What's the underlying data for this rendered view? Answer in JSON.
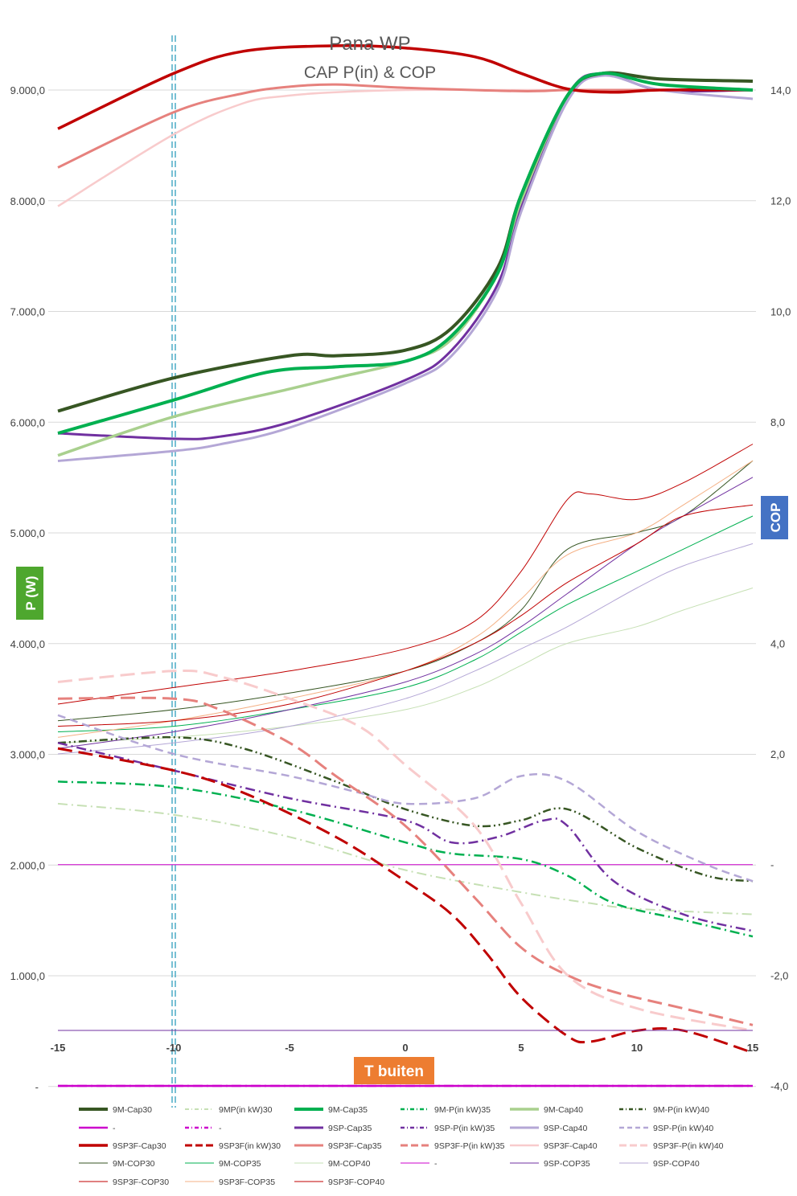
{
  "chart_data": {
    "type": "line",
    "title": "Pana WP",
    "subtitle": "CAP P(in) & COP",
    "xlabel": "T buiten",
    "ylabel": "P (W)",
    "y2label": "COP",
    "xlim": [
      -15,
      15
    ],
    "ylim": [
      0,
      10000
    ],
    "y2lim": [
      -4,
      15
    ],
    "x_ticks": [
      "-15",
      "-10",
      "-5",
      "0",
      "5",
      "10",
      "15"
    ],
    "y_ticks": [
      "9.000,0",
      "8.000,0",
      "7.000,0",
      "6.000,0",
      "5.000,0",
      "4.000,0",
      "3.000,0",
      "2.000,0",
      "1.000,0",
      "-"
    ],
    "y2_ticks": [
      "14,0",
      "12,0",
      "10,0",
      "8,0",
      "6,0",
      "4,0",
      "2,0",
      "-",
      "-2,0",
      "-4,0"
    ],
    "marker_line_x": -10,
    "colors": {
      "badge_green": "#4ea72e",
      "badge_blue": "#4472c4",
      "badge_orange": "#ed7d31",
      "marker_line": "#4bacc6"
    },
    "series": [
      {
        "name": "9M-Cap30",
        "axis": "left",
        "color": "#375623",
        "width": 4,
        "dash": "solid",
        "x": [
          -15,
          -10,
          -5,
          -3,
          0,
          2,
          4,
          5,
          7,
          8.5,
          11,
          15
        ],
        "values": [
          6100,
          6400,
          6600,
          6600,
          6650,
          6850,
          7400,
          8050,
          8950,
          9150,
          9100,
          9080
        ]
      },
      {
        "name": "9MP(in kW)30",
        "axis": "right",
        "color": "#c6e0b4",
        "width": 2,
        "dash": "dashdot",
        "x": [
          -15,
          -10,
          -5,
          0,
          5,
          8,
          10,
          15
        ],
        "values": [
          1.1,
          0.9,
          0.5,
          -0.1,
          -0.5,
          -0.7,
          -0.8,
          -0.9
        ]
      },
      {
        "name": "9M-Cap35",
        "axis": "left",
        "color": "#00b050",
        "width": 4,
        "dash": "solid",
        "x": [
          -15,
          -10,
          -6,
          -3,
          0,
          2,
          4,
          5,
          7,
          8.5,
          11,
          15
        ],
        "values": [
          5900,
          6200,
          6450,
          6500,
          6550,
          6780,
          7350,
          8050,
          8950,
          9150,
          9050,
          9000
        ]
      },
      {
        "name": "9M-P(in kW)35",
        "axis": "right",
        "color": "#00b050",
        "width": 2.5,
        "dash": "dashdot",
        "x": [
          -15,
          -10,
          -5,
          0,
          2,
          5,
          7,
          9,
          12,
          15
        ],
        "values": [
          1.5,
          1.4,
          1.0,
          0.4,
          0.2,
          0.1,
          -0.2,
          -0.7,
          -1.0,
          -1.3
        ]
      },
      {
        "name": "9M-Cap40",
        "axis": "left",
        "color": "#a9d08e",
        "width": 3.5,
        "dash": "solid",
        "x": [
          -15,
          -10,
          -5,
          -3,
          0,
          2,
          4,
          5,
          7,
          8.5,
          11,
          15
        ],
        "values": [
          5700,
          6050,
          6300,
          6400,
          6550,
          6750,
          7350,
          8000,
          8950,
          9150,
          9050,
          9000
        ]
      },
      {
        "name": "9M-P(in kW)40",
        "axis": "right",
        "color": "#375623",
        "width": 2.5,
        "dash": "dashdotdot",
        "x": [
          -15,
          -10,
          -7,
          -3,
          0,
          3,
          5,
          7,
          10,
          13,
          15
        ],
        "values": [
          2.2,
          2.3,
          2.1,
          1.5,
          1.0,
          0.7,
          0.8,
          1.0,
          0.3,
          -0.2,
          -0.3
        ]
      },
      {
        "name": "-",
        "axis": "right",
        "color": "#cc00cc",
        "width": 2.5,
        "dash": "solid",
        "x": [
          -15,
          15
        ],
        "values": [
          -4.0,
          -4.0
        ]
      },
      {
        "name": "-",
        "axis": "right",
        "color": "#cc00cc",
        "width": 2.5,
        "dash": "dashdot",
        "x": [
          -15,
          15
        ],
        "values": [
          -4.0,
          -4.0
        ]
      },
      {
        "name": "9SP-Cap35",
        "axis": "left",
        "color": "#7030a0",
        "width": 3,
        "dash": "solid",
        "x": [
          -15,
          -10,
          -8,
          -5,
          0,
          2,
          4,
          5,
          7,
          8.5,
          11,
          15
        ],
        "values": [
          5900,
          5850,
          5870,
          6000,
          6380,
          6650,
          7250,
          7950,
          8950,
          9150,
          9000,
          9000
        ]
      },
      {
        "name": "9SP-P(in kW)35",
        "axis": "right",
        "color": "#7030a0",
        "width": 2.5,
        "dash": "dashdot",
        "x": [
          -15,
          -10,
          -5,
          0,
          2,
          4,
          6,
          7,
          9,
          12,
          15
        ],
        "values": [
          2.2,
          1.7,
          1.2,
          0.8,
          0.4,
          0.5,
          0.8,
          0.7,
          -0.3,
          -0.9,
          -1.2
        ]
      },
      {
        "name": "9SP-Cap40",
        "axis": "left",
        "color": "#b4a7d6",
        "width": 3,
        "dash": "solid",
        "x": [
          -15,
          -10,
          -8,
          -5,
          0,
          2,
          4,
          5,
          7,
          8.5,
          11,
          15
        ],
        "values": [
          5650,
          5740,
          5800,
          5950,
          6350,
          6600,
          7200,
          7900,
          8900,
          9130,
          9000,
          8920
        ]
      },
      {
        "name": "9SP-P(in kW)40",
        "axis": "right",
        "color": "#b4a7d6",
        "width": 2.5,
        "dash": "dash",
        "x": [
          -15,
          -10,
          -5,
          -2,
          0,
          3,
          5,
          7,
          10,
          13,
          15
        ],
        "values": [
          2.7,
          2.0,
          1.6,
          1.3,
          1.1,
          1.2,
          1.6,
          1.5,
          0.6,
          0.0,
          -0.3
        ]
      },
      {
        "name": "9SP3F-Cap30",
        "axis": "left",
        "color": "#c00000",
        "width": 3.5,
        "dash": "solid",
        "x": [
          -15,
          -10,
          -7,
          -3,
          0,
          3,
          5,
          7,
          9,
          11,
          15
        ],
        "values": [
          8650,
          9150,
          9350,
          9400,
          9380,
          9300,
          9150,
          9010,
          8980,
          9000,
          9000
        ]
      },
      {
        "name": "9SP3F(in kW)30",
        "axis": "right",
        "color": "#c00000",
        "width": 3,
        "dash": "longdash",
        "x": [
          -15,
          -10,
          -7,
          -3,
          0,
          2,
          3.5,
          5,
          7,
          8,
          10,
          12,
          15
        ],
        "values": [
          2.1,
          1.7,
          1.3,
          0.5,
          -0.3,
          -0.9,
          -1.6,
          -2.4,
          -3.1,
          -3.2,
          -3.0,
          -3.0,
          -3.4
        ]
      },
      {
        "name": "9SP3F-Cap35",
        "axis": "left",
        "color": "#e6817d",
        "width": 3,
        "dash": "solid",
        "x": [
          -15,
          -10,
          -7,
          -5,
          -3,
          0,
          5,
          7,
          10,
          15
        ],
        "values": [
          8300,
          8800,
          8970,
          9030,
          9050,
          9020,
          8990,
          9000,
          9000,
          9000
        ]
      },
      {
        "name": "9SP3F-P(in kW)35",
        "axis": "right",
        "color": "#e6817d",
        "width": 3,
        "dash": "longdash",
        "x": [
          -15,
          -10,
          -8,
          -5,
          -3,
          0,
          3,
          5,
          7,
          9,
          12,
          15
        ],
        "values": [
          3.0,
          3.0,
          2.8,
          2.2,
          1.6,
          0.7,
          -0.6,
          -1.5,
          -2.0,
          -2.3,
          -2.6,
          -2.9
        ]
      },
      {
        "name": "9SP3F-Cap40",
        "axis": "left",
        "color": "#f8cbcc",
        "width": 2.5,
        "dash": "solid",
        "x": [
          -15,
          -10,
          -7,
          -5,
          -3,
          0,
          5,
          8,
          10,
          15
        ],
        "values": [
          7950,
          8600,
          8880,
          8950,
          8980,
          9000,
          9000,
          9000,
          9000,
          9000
        ]
      },
      {
        "name": "9SP3F-P(in kW)40",
        "axis": "right",
        "color": "#f8cbcc",
        "width": 3,
        "dash": "longdash",
        "x": [
          -15,
          -10,
          -8,
          -5,
          -2,
          0,
          3,
          5,
          7,
          10,
          15
        ],
        "values": [
          3.3,
          3.5,
          3.4,
          3.0,
          2.5,
          1.8,
          0.7,
          -0.7,
          -2.0,
          -2.6,
          -3.0
        ]
      },
      {
        "name": "9M-COP30",
        "axis": "right",
        "color": "#375623",
        "width": 1,
        "dash": "solid",
        "x": [
          -15,
          -10,
          -5,
          0,
          3,
          5,
          7,
          10,
          12,
          15
        ],
        "values": [
          2.6,
          2.8,
          3.1,
          3.5,
          4.0,
          4.6,
          5.7,
          6.0,
          6.3,
          7.3
        ]
      },
      {
        "name": "9M-COP35",
        "axis": "right",
        "color": "#00b050",
        "width": 1,
        "dash": "solid",
        "x": [
          -15,
          -10,
          -5,
          0,
          3,
          5,
          7,
          10,
          12,
          15
        ],
        "values": [
          2.4,
          2.5,
          2.8,
          3.2,
          3.7,
          4.2,
          4.7,
          5.3,
          5.7,
          6.3
        ]
      },
      {
        "name": "9M-COP40",
        "axis": "right",
        "color": "#c6e0b4",
        "width": 1,
        "dash": "solid",
        "x": [
          -15,
          -10,
          -5,
          0,
          3,
          5,
          7,
          10,
          12,
          15
        ],
        "values": [
          2.2,
          2.3,
          2.5,
          2.8,
          3.2,
          3.6,
          4.0,
          4.3,
          4.6,
          5.0
        ]
      },
      {
        "name": "-",
        "axis": "right",
        "color": "#cc00cc",
        "width": 1,
        "dash": "solid",
        "x": [
          -15,
          15
        ],
        "values": [
          -0.001,
          -0.001
        ]
      },
      {
        "name": "9SP-COP35",
        "axis": "right",
        "color": "#7030a0",
        "width": 1,
        "dash": "solid",
        "x": [
          -15,
          -10,
          -5,
          0,
          3,
          5,
          7,
          10,
          12,
          15
        ],
        "values": [
          2.1,
          2.4,
          2.8,
          3.3,
          3.8,
          4.3,
          4.9,
          5.8,
          6.3,
          7.0
        ]
      },
      {
        "name": "9SP-COP40",
        "axis": "right",
        "color": "#b4a7d6",
        "width": 1,
        "dash": "solid",
        "x": [
          -15,
          -10,
          -5,
          0,
          3,
          5,
          7,
          10,
          12,
          15
        ],
        "values": [
          2.0,
          2.2,
          2.5,
          3.0,
          3.5,
          3.9,
          4.3,
          5.0,
          5.4,
          5.8
        ]
      },
      {
        "name": "9SP3F-COP30",
        "axis": "right",
        "color": "#c00000",
        "width": 1,
        "dash": "solid",
        "x": [
          -15,
          -10,
          -5,
          0,
          3,
          5,
          7,
          8,
          10,
          12,
          15
        ],
        "values": [
          2.9,
          3.2,
          3.5,
          3.9,
          4.4,
          5.3,
          6.6,
          6.7,
          6.6,
          6.9,
          7.6
        ]
      },
      {
        "name": "9SP3F-COP35",
        "axis": "right",
        "color": "#f4b084",
        "width": 1,
        "dash": "solid",
        "x": [
          -15,
          -10,
          -5,
          0,
          3,
          5,
          7,
          10,
          12,
          15
        ],
        "values": [
          2.3,
          2.6,
          3.0,
          3.5,
          4.1,
          4.8,
          5.6,
          6.0,
          6.5,
          7.3
        ]
      },
      {
        "name": "9SP3F-COP40",
        "axis": "right",
        "color": "#c00000",
        "width": 1,
        "dash": "solid",
        "x": [
          -15,
          -10,
          -5,
          0,
          3,
          5,
          7,
          10,
          12,
          15
        ],
        "values": [
          2.5,
          2.6,
          2.9,
          3.5,
          4.0,
          4.5,
          5.1,
          5.8,
          6.3,
          6.5
        ]
      }
    ]
  }
}
